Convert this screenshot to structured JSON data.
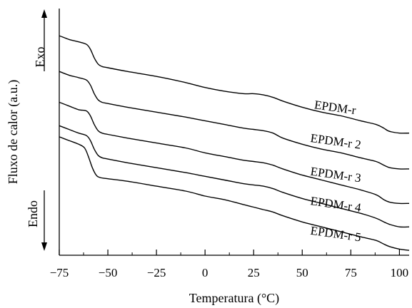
{
  "chart_data": {
    "type": "line",
    "title": "",
    "xlabel": "Temperatura (°C)",
    "ylabel": "Fluxo de calor (a.u.)",
    "xlim": [
      -75,
      105
    ],
    "xticks": [
      -75,
      -50,
      -25,
      0,
      25,
      50,
      75,
      100
    ],
    "xtick_labels": [
      "−75",
      "−50",
      "−25",
      "0",
      "25",
      "50",
      "75",
      "100"
    ],
    "yticks": false,
    "grid": false,
    "legend": "none",
    "indicators": {
      "exo": "Exo",
      "endo": "Endo"
    },
    "series": [
      {
        "name": "EPDM-r",
        "x": [
          -75,
          -70,
          -65,
          -61,
          -59,
          -57,
          -55,
          -53,
          -50,
          -40,
          -25,
          -10,
          0,
          10,
          20,
          25,
          30,
          35,
          40,
          50,
          60,
          70,
          80,
          88,
          92,
          94,
          96,
          100,
          105
        ],
        "y": [
          0.89,
          0.875,
          0.865,
          0.855,
          0.835,
          0.8,
          0.775,
          0.765,
          0.76,
          0.745,
          0.725,
          0.7,
          0.68,
          0.665,
          0.655,
          0.655,
          0.65,
          0.64,
          0.625,
          0.6,
          0.58,
          0.565,
          0.545,
          0.53,
          0.515,
          0.505,
          0.5,
          0.495,
          0.495
        ]
      },
      {
        "name": "EPDM-r 2",
        "x": [
          -75,
          -70,
          -65,
          -61,
          -59,
          -57,
          -55,
          -53,
          -50,
          -40,
          -25,
          -10,
          0,
          10,
          20,
          25,
          30,
          35,
          40,
          50,
          60,
          70,
          80,
          88,
          92,
          95,
          100,
          105
        ],
        "y": [
          0.745,
          0.73,
          0.72,
          0.71,
          0.69,
          0.655,
          0.63,
          0.62,
          0.615,
          0.6,
          0.58,
          0.56,
          0.545,
          0.53,
          0.515,
          0.51,
          0.505,
          0.495,
          0.475,
          0.45,
          0.43,
          0.415,
          0.395,
          0.38,
          0.365,
          0.355,
          0.35,
          0.35
        ]
      },
      {
        "name": "EPDM-r 3",
        "x": [
          -75,
          -70,
          -65,
          -61,
          -59,
          -57,
          -55,
          -53,
          -50,
          -40,
          -25,
          -10,
          0,
          10,
          20,
          25,
          30,
          35,
          40,
          50,
          60,
          70,
          80,
          88,
          92,
          95,
          100,
          105
        ],
        "y": [
          0.62,
          0.605,
          0.59,
          0.585,
          0.565,
          0.53,
          0.505,
          0.495,
          0.49,
          0.475,
          0.455,
          0.435,
          0.415,
          0.4,
          0.385,
          0.38,
          0.375,
          0.365,
          0.35,
          0.325,
          0.305,
          0.285,
          0.265,
          0.245,
          0.225,
          0.215,
          0.21,
          0.21
        ]
      },
      {
        "name": "EPDM-r 4",
        "x": [
          -75,
          -70,
          -65,
          -61,
          -59,
          -57,
          -55,
          -53,
          -50,
          -40,
          -25,
          -10,
          0,
          10,
          20,
          25,
          30,
          35,
          40,
          50,
          60,
          70,
          80,
          88,
          92,
          95,
          100,
          105
        ],
        "y": [
          0.525,
          0.51,
          0.495,
          0.485,
          0.465,
          0.43,
          0.405,
          0.395,
          0.39,
          0.375,
          0.355,
          0.335,
          0.32,
          0.305,
          0.29,
          0.285,
          0.28,
          0.27,
          0.255,
          0.23,
          0.21,
          0.19,
          0.17,
          0.15,
          0.135,
          0.125,
          0.115,
          0.115
        ]
      },
      {
        "name": "EPDM-r 5",
        "x": [
          -75,
          -70,
          -65,
          -62,
          -60,
          -58,
          -56,
          -54,
          -50,
          -40,
          -25,
          -10,
          0,
          10,
          20,
          25,
          30,
          35,
          40,
          50,
          60,
          70,
          80,
          88,
          92,
          95,
          100,
          105
        ],
        "y": [
          0.48,
          0.465,
          0.45,
          0.435,
          0.4,
          0.355,
          0.325,
          0.315,
          0.31,
          0.3,
          0.28,
          0.26,
          0.24,
          0.225,
          0.205,
          0.195,
          0.185,
          0.175,
          0.16,
          0.135,
          0.115,
          0.095,
          0.075,
          0.06,
          0.045,
          0.035,
          0.025,
          0.02
        ]
      }
    ],
    "series_label_positions": [
      {
        "x": 56,
        "y": 0.595,
        "rotate": 8
      },
      {
        "x": 54,
        "y": 0.46,
        "rotate": 8
      },
      {
        "x": 54,
        "y": 0.325,
        "rotate": 8
      },
      {
        "x": 54,
        "y": 0.205,
        "rotate": 8
      },
      {
        "x": 54,
        "y": 0.085,
        "rotate": 8
      }
    ]
  }
}
